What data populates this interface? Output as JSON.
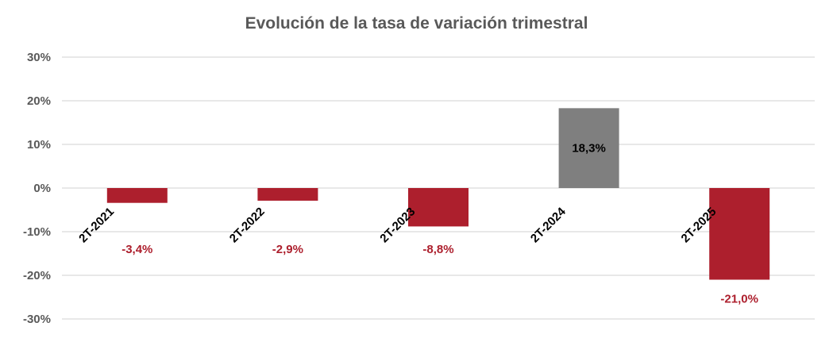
{
  "chart_data": {
    "type": "bar",
    "title": "Evolución de la tasa de variación trimestral",
    "xlabel": "",
    "ylabel": "",
    "categories": [
      "2T-2021",
      "2T-2022",
      "2T-2023",
      "2T-2024",
      "2T-2025"
    ],
    "values": [
      -3.4,
      -2.9,
      -8.8,
      18.3,
      -21.0
    ],
    "value_labels": [
      "-3,4%",
      "-2,9%",
      "-8,8%",
      "18,3%",
      "-21,0%"
    ],
    "ylim": [
      -30,
      30
    ],
    "yticks": [
      30,
      20,
      10,
      0,
      -10,
      -20,
      -30
    ],
    "ytick_labels": [
      "30%",
      "20%",
      "10%",
      "0%",
      "-10%",
      "-20%",
      "-30%"
    ],
    "grid": true,
    "legend": "none",
    "colors": {
      "negative": "#ad1f2d",
      "positive": "#7f7f7f",
      "negative_label": "#ad1f2d",
      "positive_label": "#000000",
      "grid": "#d9d9d9",
      "tick_text": "#595959"
    }
  }
}
